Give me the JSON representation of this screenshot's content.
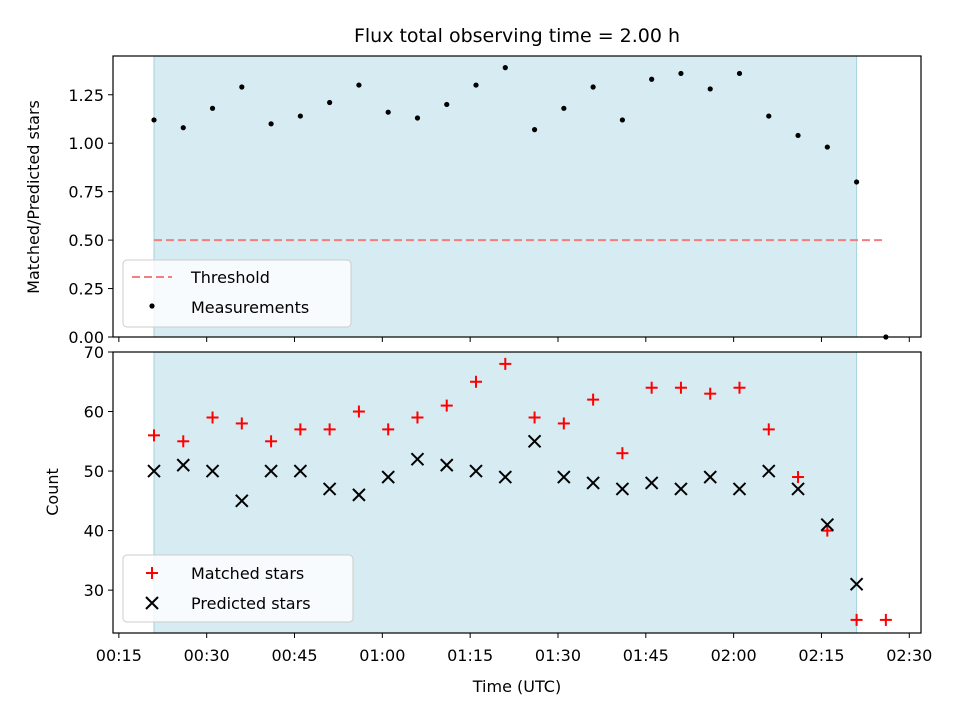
{
  "chart_data": [
    {
      "type": "scatter",
      "title": "Flux total observing time = 2.00 h",
      "ylabel": "Matched/Predicted stars",
      "ylim": [
        0,
        1.45
      ],
      "yticks": [
        0.0,
        0.25,
        0.5,
        0.75,
        1.0,
        1.25
      ],
      "ytick_labels": [
        "0.00",
        "0.25",
        "0.50",
        "0.75",
        "1.00",
        "1.25"
      ],
      "grid": false,
      "legend_position": "lower-left",
      "shaded_span": [
        "00:21",
        "02:21"
      ],
      "threshold": {
        "name": "Threshold",
        "value": 0.5,
        "x": [
          "00:21",
          "02:26"
        ],
        "color": "#f08080"
      },
      "series": [
        {
          "name": "Measurements",
          "color": "#000000",
          "x": [
            "00:21",
            "00:26",
            "00:31",
            "00:36",
            "00:41",
            "00:46",
            "00:51",
            "00:56",
            "01:01",
            "01:06",
            "01:11",
            "01:16",
            "01:21",
            "01:26",
            "01:31",
            "01:36",
            "01:41",
            "01:46",
            "01:51",
            "01:56",
            "02:01",
            "02:06",
            "02:11",
            "02:16",
            "02:21",
            "02:26"
          ],
          "values": [
            1.12,
            1.08,
            1.18,
            1.29,
            1.1,
            1.14,
            1.21,
            1.3,
            1.16,
            1.13,
            1.2,
            1.3,
            1.39,
            1.07,
            1.18,
            1.29,
            1.12,
            1.33,
            1.36,
            1.28,
            1.36,
            1.14,
            1.04,
            0.98,
            0.8,
            0.0
          ]
        }
      ]
    },
    {
      "type": "scatter",
      "xlabel": "Time (UTC)",
      "ylabel": "Count",
      "ylim": [
        22.8,
        70
      ],
      "yticks": [
        30,
        40,
        50,
        60,
        70
      ],
      "ytick_labels": [
        "30",
        "40",
        "50",
        "60",
        "70"
      ],
      "xlim": [
        "00:14",
        "02:32"
      ],
      "xticks": [
        "00:15",
        "00:30",
        "00:45",
        "01:00",
        "01:15",
        "01:30",
        "01:45",
        "02:00",
        "02:15",
        "02:30"
      ],
      "grid": false,
      "legend_position": "lower-left",
      "shaded_span": [
        "00:21",
        "02:21"
      ],
      "series": [
        {
          "name": "Matched stars",
          "marker": "plus",
          "color": "#ff0000",
          "x": [
            "00:21",
            "00:26",
            "00:31",
            "00:36",
            "00:41",
            "00:46",
            "00:51",
            "00:56",
            "01:01",
            "01:06",
            "01:11",
            "01:16",
            "01:21",
            "01:26",
            "01:31",
            "01:36",
            "01:41",
            "01:46",
            "01:51",
            "01:56",
            "02:01",
            "02:06",
            "02:11",
            "02:16",
            "02:21",
            "02:26"
          ],
          "values": [
            56,
            55,
            59,
            58,
            55,
            57,
            57,
            60,
            57,
            59,
            61,
            65,
            68,
            59,
            58,
            62,
            53,
            64,
            64,
            63,
            64,
            57,
            49,
            40,
            25,
            25
          ]
        },
        {
          "name": "Predicted stars",
          "marker": "x",
          "color": "#000000",
          "x": [
            "00:21",
            "00:26",
            "00:31",
            "00:36",
            "00:41",
            "00:46",
            "00:51",
            "00:56",
            "01:01",
            "01:06",
            "01:11",
            "01:16",
            "01:21",
            "01:26",
            "01:31",
            "01:36",
            "01:41",
            "01:46",
            "01:51",
            "01:56",
            "02:01",
            "02:06",
            "02:11",
            "02:16",
            "02:21"
          ],
          "values": [
            50,
            51,
            50,
            45,
            50,
            50,
            47,
            46,
            49,
            52,
            51,
            50,
            49,
            55,
            49,
            48,
            47,
            48,
            47,
            49,
            47,
            50,
            47,
            41,
            31
          ]
        }
      ]
    }
  ]
}
